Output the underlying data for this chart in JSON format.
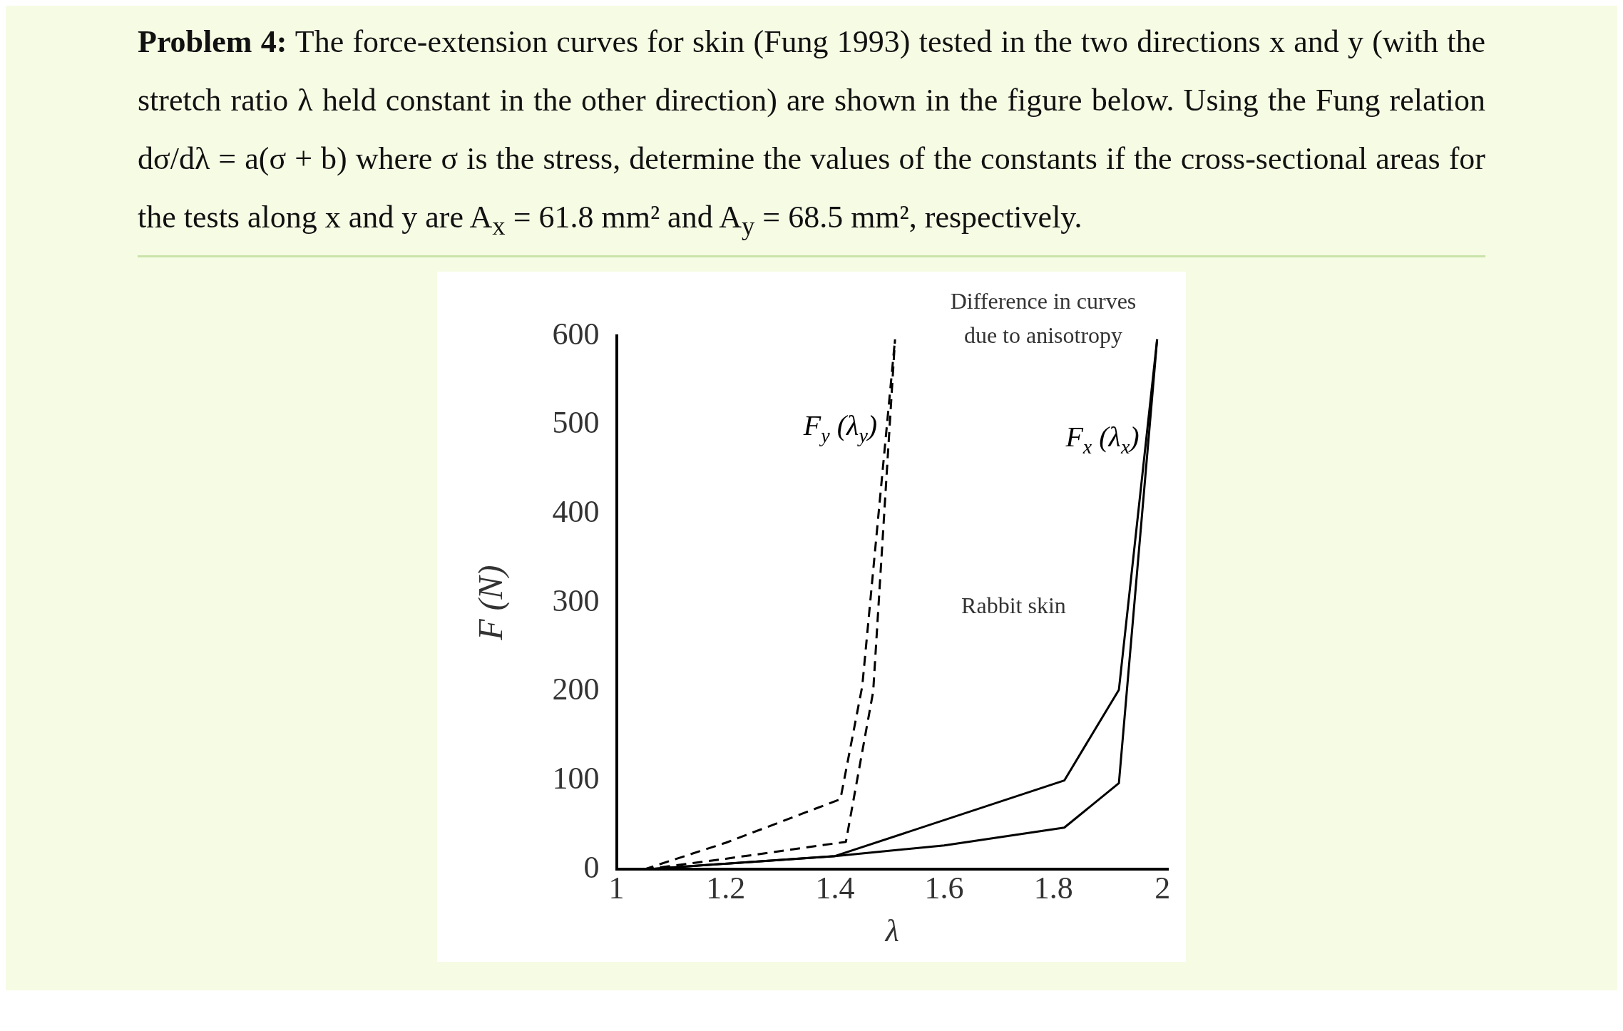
{
  "chart_data": {
    "type": "line",
    "title": "**Problem 4:** The force-extension curves for skin (Fung 1993) tested in the two directions x and y (with the stretch ratio λ held constant in the other direction) are shown in the figure below. Using the Fung relation dσ/dλ = a(σ + b) where σ is the stress, determine the values of the constants if the cross-sectional areas for the tests along x and y are A$_{x}$ = 61.8 mm² and A$_{y}$ = 68.5 mm², respectively.",
    "xlabel": "λ",
    "ylabel": "F (N)",
    "annotations": [
      "Difference in curves due to anisotropy",
      "Rabbit skin"
    ],
    "series": [
      {
        "name": "F$_{y}$ (λ$_{y}$)",
        "color": "#000000",
        "line_style": "dashed",
        "x": [
          1.05,
          1.2,
          1.41,
          1.45,
          1.51
        ],
        "values": [
          0,
          30,
          79,
          206,
          596
        ]
      },
      {
        "color": "#000000",
        "line_style": "dashed",
        "x": [
          1.05,
          1.2,
          1.42,
          1.47,
          1.51
        ],
        "values": [
          0,
          12,
          31,
          200,
          596
        ]
      },
      {
        "name": "F$_{x}$ (λ$_{x}$)",
        "color": "#000000",
        "line_style": "solid",
        "x": [
          1.05,
          1.4,
          1.82,
          1.92,
          1.99
        ],
        "values": [
          0,
          15,
          100,
          202,
          596
        ]
      },
      {
        "color": "#000000",
        "line_style": "solid",
        "x": [
          1.05,
          1.4,
          1.6,
          1.82,
          1.92,
          1.99
        ],
        "values": [
          0,
          15,
          27,
          47,
          97,
          596
        ]
      }
    ],
    "xlim": [
      1,
      2.01
    ],
    "xticks": [
      1,
      1.2,
      1.4,
      1.6,
      1.8,
      2
    ],
    "ylim": [
      0,
      600
    ],
    "yticks": [
      0,
      100,
      200,
      300,
      400,
      500,
      600
    ],
    "grid": false,
    "legend": false,
    "marker": "none"
  }
}
